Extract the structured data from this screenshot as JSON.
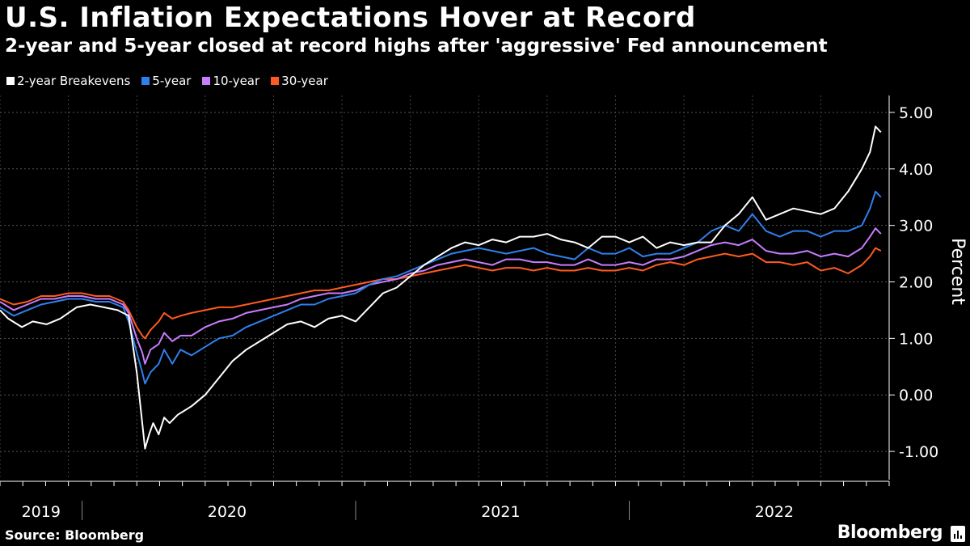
{
  "header": {
    "title": "U.S. Inflation Expectations Hover at Record",
    "subtitle": "2-year and 5-year closed at record highs after 'aggressive' Fed announcement"
  },
  "footer": {
    "source": "Source: Bloomberg",
    "brand": "Bloomberg"
  },
  "chart_data": {
    "type": "line",
    "title": "U.S. Inflation Expectations Hover at Record",
    "subtitle": "2-year and 5-year closed at record highs after 'aggressive' Fed announcement",
    "ylabel": "Percent",
    "ylim": [
      -1.5,
      5.3
    ],
    "yticks": [
      5,
      4,
      3,
      2,
      1,
      0,
      -1
    ],
    "ytick_labels": [
      "5.00",
      "4.00",
      "3.00",
      "2.00",
      "1.00",
      "0.00",
      "-1.00"
    ],
    "xlim": [
      2019.0,
      2022.25
    ],
    "year_labels": [
      {
        "label": "2019",
        "x": 2019.15
      },
      {
        "label": "2020",
        "x": 2019.83
      },
      {
        "label": "2021",
        "x": 2020.83
      },
      {
        "label": "2022",
        "x": 2021.83
      }
    ],
    "year_dividers": [
      2019.3,
      2020.3,
      2021.3
    ],
    "legend_position": "top-left",
    "grid": true,
    "series": [
      {
        "name": "2-year Breakevens",
        "color": "#ffffff",
        "x": [
          2019.0,
          2019.03,
          2019.08,
          2019.12,
          2019.17,
          2019.22,
          2019.28,
          2019.33,
          2019.38,
          2019.43,
          2019.47,
          2019.5,
          2019.52,
          2019.53,
          2019.545,
          2019.56,
          2019.58,
          2019.6,
          2019.62,
          2019.65,
          2019.7,
          2019.75,
          2019.8,
          2019.85,
          2019.9,
          2019.95,
          2020.0,
          2020.05,
          2020.1,
          2020.15,
          2020.2,
          2020.25,
          2020.3,
          2020.35,
          2020.4,
          2020.45,
          2020.5,
          2020.55,
          2020.6,
          2020.65,
          2020.7,
          2020.75,
          2020.8,
          2020.85,
          2020.9,
          2020.95,
          2021.0,
          2021.05,
          2021.1,
          2021.15,
          2021.2,
          2021.25,
          2021.3,
          2021.35,
          2021.4,
          2021.45,
          2021.5,
          2021.55,
          2021.6,
          2021.65,
          2021.7,
          2021.75,
          2021.8,
          2021.85,
          2021.9,
          2021.95,
          2022.0,
          2022.05,
          2022.1,
          2022.15,
          2022.18,
          2022.2,
          2022.22
        ],
        "values": [
          1.5,
          1.35,
          1.2,
          1.3,
          1.25,
          1.35,
          1.55,
          1.6,
          1.55,
          1.5,
          1.4,
          0.4,
          -0.5,
          -0.95,
          -0.7,
          -0.5,
          -0.7,
          -0.4,
          -0.5,
          -0.35,
          -0.2,
          0.0,
          0.3,
          0.6,
          0.8,
          0.95,
          1.1,
          1.25,
          1.3,
          1.2,
          1.35,
          1.4,
          1.3,
          1.55,
          1.8,
          1.9,
          2.1,
          2.3,
          2.45,
          2.6,
          2.7,
          2.65,
          2.75,
          2.7,
          2.8,
          2.8,
          2.85,
          2.75,
          2.7,
          2.6,
          2.8,
          2.8,
          2.7,
          2.8,
          2.6,
          2.7,
          2.65,
          2.7,
          2.7,
          3.0,
          3.2,
          3.5,
          3.1,
          3.2,
          3.3,
          3.25,
          3.2,
          3.3,
          3.6,
          4.0,
          4.3,
          4.75,
          4.65
        ]
      },
      {
        "name": "5-year",
        "color": "#2f80ed",
        "x": [
          2019.0,
          2019.05,
          2019.1,
          2019.15,
          2019.2,
          2019.25,
          2019.3,
          2019.35,
          2019.4,
          2019.45,
          2019.47,
          2019.5,
          2019.52,
          2019.53,
          2019.55,
          2019.58,
          2019.6,
          2019.63,
          2019.66,
          2019.7,
          2019.75,
          2019.8,
          2019.85,
          2019.9,
          2019.95,
          2020.0,
          2020.05,
          2020.1,
          2020.15,
          2020.2,
          2020.25,
          2020.3,
          2020.35,
          2020.4,
          2020.45,
          2020.5,
          2020.55,
          2020.6,
          2020.65,
          2020.7,
          2020.75,
          2020.8,
          2020.85,
          2020.9,
          2020.95,
          2021.0,
          2021.05,
          2021.1,
          2021.15,
          2021.2,
          2021.25,
          2021.3,
          2021.35,
          2021.4,
          2021.45,
          2021.5,
          2021.55,
          2021.6,
          2021.65,
          2021.7,
          2021.75,
          2021.8,
          2021.85,
          2021.9,
          2021.95,
          2022.0,
          2022.05,
          2022.1,
          2022.15,
          2022.18,
          2022.2,
          2022.22
        ],
        "values": [
          1.55,
          1.4,
          1.5,
          1.6,
          1.65,
          1.7,
          1.7,
          1.65,
          1.65,
          1.55,
          1.3,
          0.75,
          0.4,
          0.2,
          0.4,
          0.55,
          0.8,
          0.55,
          0.8,
          0.7,
          0.85,
          1.0,
          1.05,
          1.2,
          1.3,
          1.4,
          1.5,
          1.6,
          1.6,
          1.7,
          1.75,
          1.8,
          1.95,
          2.05,
          2.1,
          2.2,
          2.3,
          2.4,
          2.5,
          2.55,
          2.6,
          2.55,
          2.5,
          2.55,
          2.6,
          2.5,
          2.45,
          2.4,
          2.6,
          2.5,
          2.5,
          2.6,
          2.45,
          2.5,
          2.5,
          2.6,
          2.7,
          2.9,
          3.0,
          2.9,
          3.2,
          2.9,
          2.8,
          2.9,
          2.9,
          2.8,
          2.9,
          2.9,
          3.0,
          3.3,
          3.6,
          3.5
        ]
      },
      {
        "name": "10-year",
        "color": "#c77dff",
        "x": [
          2019.0,
          2019.05,
          2019.1,
          2019.15,
          2019.2,
          2019.25,
          2019.3,
          2019.35,
          2019.4,
          2019.45,
          2019.47,
          2019.5,
          2019.52,
          2019.53,
          2019.55,
          2019.58,
          2019.6,
          2019.63,
          2019.66,
          2019.7,
          2019.75,
          2019.8,
          2019.85,
          2019.9,
          2019.95,
          2020.0,
          2020.05,
          2020.1,
          2020.15,
          2020.2,
          2020.25,
          2020.3,
          2020.35,
          2020.4,
          2020.45,
          2020.5,
          2020.55,
          2020.6,
          2020.65,
          2020.7,
          2020.75,
          2020.8,
          2020.85,
          2020.9,
          2020.95,
          2021.0,
          2021.05,
          2021.1,
          2021.15,
          2021.2,
          2021.25,
          2021.3,
          2021.35,
          2021.4,
          2021.45,
          2021.5,
          2021.55,
          2021.6,
          2021.65,
          2021.7,
          2021.75,
          2021.8,
          2021.85,
          2021.9,
          2021.95,
          2022.0,
          2022.05,
          2022.1,
          2022.15,
          2022.18,
          2022.2,
          2022.22
        ],
        "values": [
          1.65,
          1.5,
          1.6,
          1.7,
          1.7,
          1.75,
          1.75,
          1.7,
          1.7,
          1.6,
          1.45,
          1.0,
          0.75,
          0.55,
          0.8,
          0.9,
          1.1,
          0.95,
          1.05,
          1.05,
          1.2,
          1.3,
          1.35,
          1.45,
          1.5,
          1.55,
          1.6,
          1.7,
          1.75,
          1.8,
          1.8,
          1.85,
          1.95,
          2.0,
          2.05,
          2.15,
          2.2,
          2.3,
          2.35,
          2.4,
          2.35,
          2.3,
          2.4,
          2.4,
          2.35,
          2.35,
          2.3,
          2.3,
          2.4,
          2.3,
          2.3,
          2.35,
          2.3,
          2.4,
          2.4,
          2.45,
          2.55,
          2.65,
          2.7,
          2.65,
          2.75,
          2.55,
          2.5,
          2.5,
          2.55,
          2.45,
          2.5,
          2.45,
          2.6,
          2.8,
          2.95,
          2.85
        ]
      },
      {
        "name": "30-year",
        "color": "#ff5a1f",
        "x": [
          2019.0,
          2019.05,
          2019.1,
          2019.15,
          2019.2,
          2019.25,
          2019.3,
          2019.35,
          2019.4,
          2019.45,
          2019.47,
          2019.5,
          2019.52,
          2019.53,
          2019.55,
          2019.58,
          2019.6,
          2019.63,
          2019.66,
          2019.7,
          2019.75,
          2019.8,
          2019.85,
          2019.9,
          2019.95,
          2020.0,
          2020.05,
          2020.1,
          2020.15,
          2020.2,
          2020.25,
          2020.3,
          2020.35,
          2020.4,
          2020.45,
          2020.5,
          2020.55,
          2020.6,
          2020.65,
          2020.7,
          2020.75,
          2020.8,
          2020.85,
          2020.9,
          2020.95,
          2021.0,
          2021.05,
          2021.1,
          2021.15,
          2021.2,
          2021.25,
          2021.3,
          2021.35,
          2021.4,
          2021.45,
          2021.5,
          2021.55,
          2021.6,
          2021.65,
          2021.7,
          2021.75,
          2021.8,
          2021.85,
          2021.9,
          2021.95,
          2022.0,
          2022.05,
          2022.1,
          2022.15,
          2022.18,
          2022.2,
          2022.22
        ],
        "values": [
          1.7,
          1.6,
          1.65,
          1.75,
          1.75,
          1.8,
          1.8,
          1.75,
          1.75,
          1.65,
          1.5,
          1.2,
          1.05,
          1.0,
          1.15,
          1.3,
          1.45,
          1.35,
          1.4,
          1.45,
          1.5,
          1.55,
          1.55,
          1.6,
          1.65,
          1.7,
          1.75,
          1.8,
          1.85,
          1.85,
          1.9,
          1.95,
          2.0,
          2.05,
          2.05,
          2.1,
          2.15,
          2.2,
          2.25,
          2.3,
          2.25,
          2.2,
          2.25,
          2.25,
          2.2,
          2.25,
          2.2,
          2.2,
          2.25,
          2.2,
          2.2,
          2.25,
          2.2,
          2.3,
          2.35,
          2.3,
          2.4,
          2.45,
          2.5,
          2.45,
          2.5,
          2.35,
          2.35,
          2.3,
          2.35,
          2.2,
          2.25,
          2.15,
          2.3,
          2.45,
          2.6,
          2.55
        ]
      }
    ]
  }
}
